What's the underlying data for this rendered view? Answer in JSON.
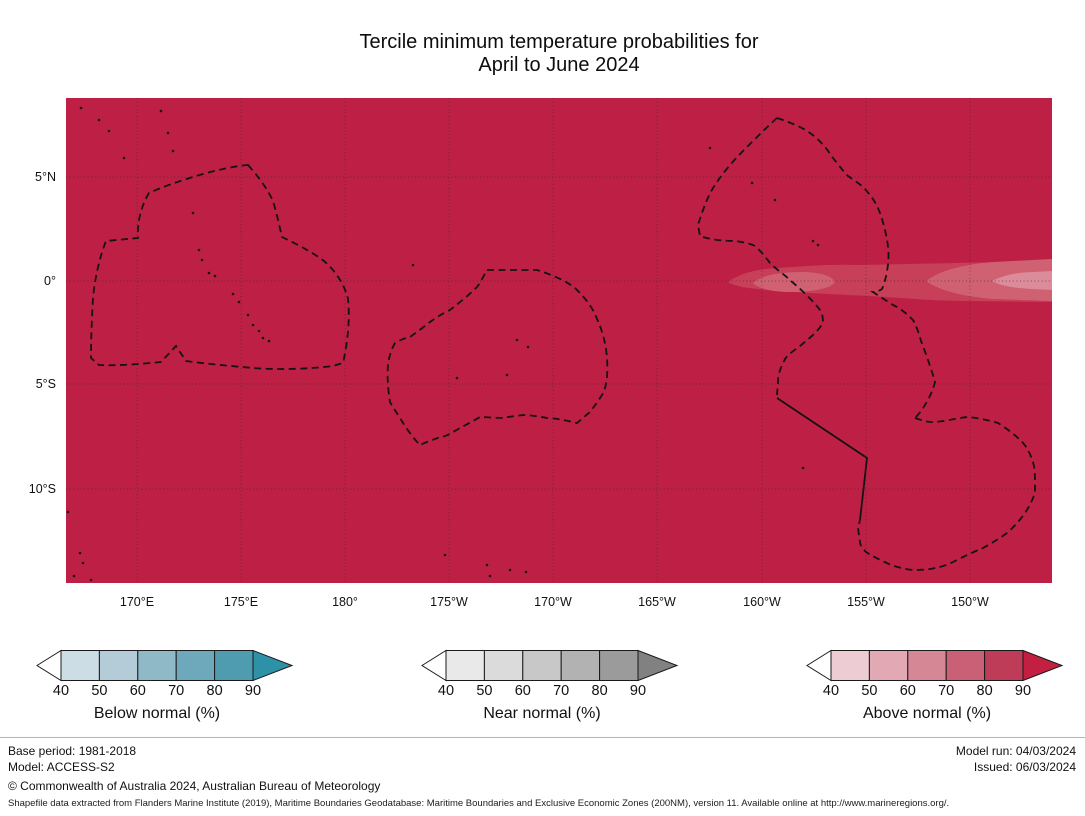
{
  "title": {
    "line1": "Tercile minimum temperature probabilities for",
    "line2": "April to June 2024"
  },
  "map": {
    "x_ticks": [
      "170°E",
      "175°E",
      "180°",
      "175°W",
      "170°W",
      "165°W",
      "160°W",
      "155°W",
      "150°W"
    ],
    "y_ticks": [
      "5°N",
      "0°",
      "5°S",
      "10°S"
    ],
    "colors": {
      "fill": "#bd2044",
      "equator_bands": [
        "#c73f58",
        "#d06173",
        "#db8b99"
      ],
      "boundary": "#141414"
    }
  },
  "legends": [
    {
      "label": "Below normal (%)",
      "ticks": [
        "40",
        "50",
        "60",
        "70",
        "80",
        "90"
      ],
      "segment_colors": [
        "#cddde6",
        "#b3ccd8",
        "#90b9c8",
        "#6ea9bb",
        "#4f9cb0"
      ],
      "arrow_color": "#2d91a7"
    },
    {
      "label": "Near normal (%)",
      "ticks": [
        "40",
        "50",
        "60",
        "70",
        "80",
        "90"
      ],
      "segment_colors": [
        "#e9e9e9",
        "#dbdbdb",
        "#c8c8c8",
        "#b2b2b2",
        "#9b9b9b"
      ],
      "arrow_color": "#818181"
    },
    {
      "label": "Above normal (%)",
      "ticks": [
        "40",
        "50",
        "60",
        "70",
        "80",
        "90"
      ],
      "segment_colors": [
        "#edccd3",
        "#e2a9b5",
        "#d68795",
        "#ca6076",
        "#be3c57"
      ],
      "arrow_color": "#c21f41"
    }
  ],
  "footer": {
    "left_lines": [
      "Base period: 1981-2018",
      "Model: ACCESS-S2",
      "© Commonwealth of Australia 2024, Australian Bureau of Meteorology"
    ],
    "right_lines": [
      "Model run: 04/03/2024",
      "Issued: 06/03/2024"
    ],
    "attribution": "Shapefile data extracted from Flanders Marine Institute (2019), Maritime Boundaries Geodatabase: Maritime Boundaries and Exclusive Economic Zones (200NM), version 11. Available online at http://www.marineregions.org/."
  }
}
